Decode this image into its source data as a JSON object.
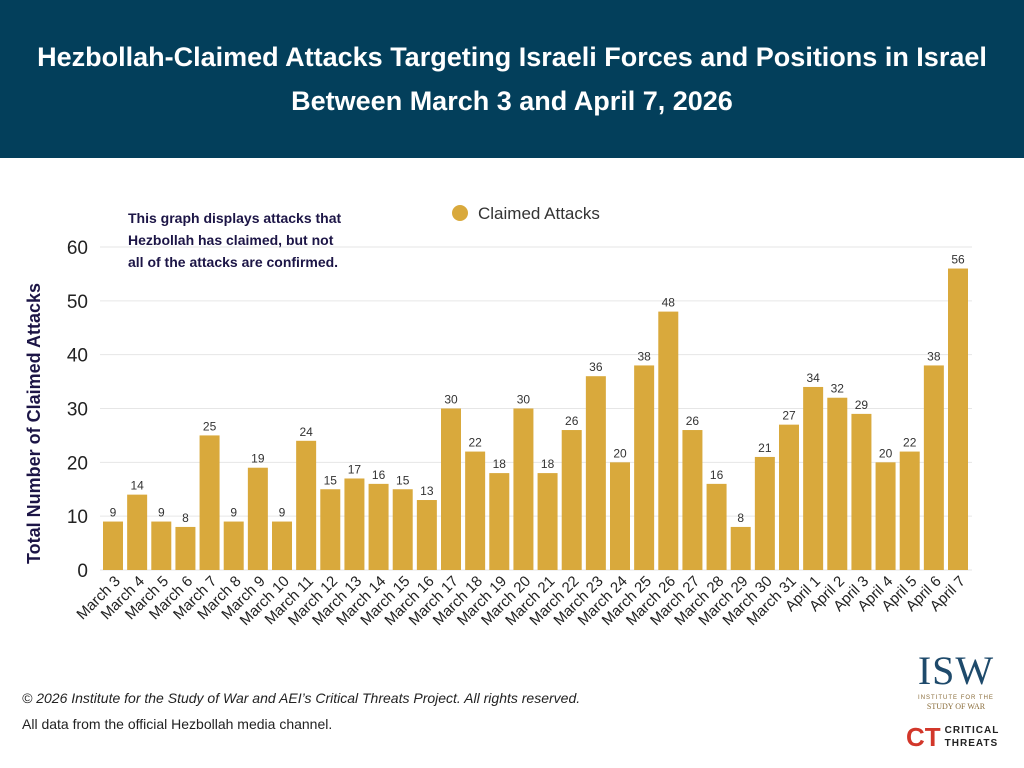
{
  "chart_data": {
    "type": "bar",
    "title": "Hezbollah-Claimed Attacks Targeting Israeli Forces and Positions in Israel Between March 3 and April 7, 2026",
    "ylabel": "Total Number of Claimed Attacks",
    "xlabel": "",
    "ylim": [
      0,
      60
    ],
    "yticks": [
      0,
      10,
      20,
      30,
      40,
      50,
      60
    ],
    "grid": true,
    "legend_position": "top-center",
    "series": [
      {
        "name": "Claimed Attacks",
        "color": "#d9a93c",
        "values": [
          9,
          14,
          9,
          8,
          25,
          9,
          19,
          9,
          24,
          15,
          17,
          16,
          15,
          13,
          30,
          22,
          18,
          30,
          18,
          26,
          36,
          20,
          38,
          48,
          26,
          16,
          8,
          21,
          27,
          34,
          32,
          29,
          20,
          22,
          38,
          56
        ]
      }
    ],
    "categories": [
      "March 3",
      "March 4",
      "March 5",
      "March 6",
      "March 7",
      "March 8",
      "March 9",
      "March 10",
      "March 11",
      "March 12",
      "March 13",
      "March 14",
      "March 15",
      "March 16",
      "March 17",
      "March 18",
      "March 19",
      "March 20",
      "March 21",
      "March 22",
      "March 23",
      "March 24",
      "March 25",
      "March 26",
      "March 27",
      "March 28",
      "March 29",
      "March 30",
      "March 31",
      "April 1",
      "April 2",
      "April 3",
      "April 4",
      "April 5",
      "April 6",
      "April 7"
    ],
    "annotation": "This graph displays attacks that Hezbollah has claimed, but not all of the attacks are confirmed."
  },
  "footer": {
    "copyright": "© 2026 Institute for the Study of War and AEI’s Critical Threats Project. All rights reserved.",
    "source": "All data from the official Hezbollah media channel."
  },
  "logos": {
    "isw": "ISW",
    "isw_sub1": "INSTITUTE FOR THE",
    "isw_sub2": "STUDY OF WAR",
    "ct_mark": "CT",
    "ct_line1": "CRITICAL",
    "ct_line2": "THREATS"
  },
  "colors": {
    "banner": "#033f5b",
    "bar": "#d9a93c",
    "text": "#1c1546"
  }
}
